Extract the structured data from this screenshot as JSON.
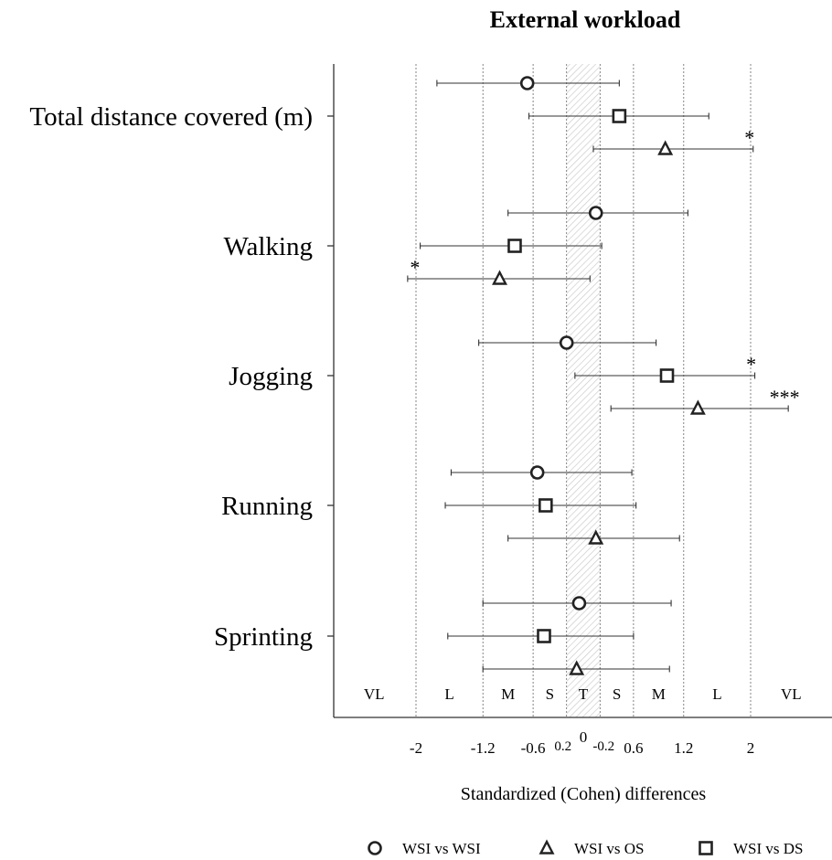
{
  "chart_data": {
    "type": "forest",
    "title": "External workload",
    "xlabel": "Standardized (Cohen) differences",
    "x_ticks": [
      "-2",
      "-1.2",
      "-0.6",
      "0.2",
      "-0.2",
      "0.6",
      "1.2",
      "2"
    ],
    "zero_label": "0",
    "gridlines": [
      -2,
      -1.2,
      -0.6,
      -0.2,
      0.2,
      0.6,
      1.2,
      2
    ],
    "trivial_band": [
      -0.2,
      0.2
    ],
    "xlim": [
      -3,
      5
    ],
    "bands": [
      "VL",
      "L",
      "M",
      "S",
      "T",
      "S",
      "M",
      "L",
      "VL"
    ],
    "categories": [
      "Total distance covered (m)",
      "Walking",
      "Jogging",
      "Running",
      "Sprinting"
    ],
    "series": [
      {
        "name": "WSI vs WSI",
        "marker": "circle",
        "values": [
          -0.67,
          0.15,
          -0.2,
          -0.55,
          -0.05
        ],
        "lower": [
          -1.75,
          -0.9,
          -1.25,
          -1.58,
          -1.2
        ],
        "upper": [
          0.43,
          1.25,
          0.87,
          0.58,
          1.05
        ],
        "significance": [
          "",
          "",
          "",
          "",
          ""
        ]
      },
      {
        "name": "WSI vs DS",
        "marker": "square",
        "values": [
          0.43,
          -0.82,
          1.0,
          -0.45,
          -0.47
        ],
        "lower": [
          -0.65,
          -1.95,
          -0.1,
          -1.65,
          -1.62
        ],
        "upper": [
          1.5,
          0.22,
          2.05,
          0.63,
          0.6
        ],
        "significance": [
          "",
          "",
          "*",
          "",
          ""
        ]
      },
      {
        "name": "WSI vs OS",
        "marker": "triangle",
        "values": [
          0.98,
          -1.0,
          1.37,
          0.15,
          -0.08
        ],
        "lower": [
          0.12,
          -2.1,
          0.33,
          -0.9,
          -1.2
        ],
        "upper": [
          2.03,
          0.08,
          2.45,
          1.15,
          1.03
        ],
        "significance": [
          "*",
          "*",
          "***",
          "",
          ""
        ]
      }
    ],
    "legend": [
      {
        "name": "WSI vs WSI",
        "marker": "circle"
      },
      {
        "name": "WSI vs OS",
        "marker": "triangle"
      },
      {
        "name": "WSI vs DS",
        "marker": "square"
      }
    ],
    "legend_position": "bottom"
  }
}
